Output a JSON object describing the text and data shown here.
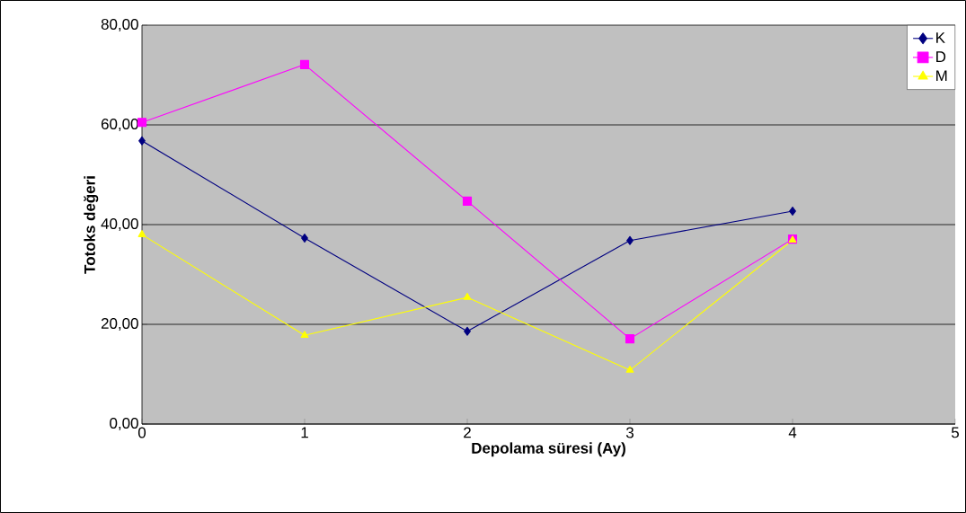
{
  "chart_data": {
    "type": "line",
    "xlabel": "Depolama süresi (Ay)",
    "ylabel": "Totoks değeri",
    "x": [
      0,
      1,
      2,
      3,
      4
    ],
    "series": [
      {
        "name": "K",
        "color": "#000080",
        "marker": "diamond",
        "values": [
          56.8,
          37.3,
          18.6,
          36.8,
          42.7
        ]
      },
      {
        "name": "D",
        "color": "#ff00ff",
        "marker": "square",
        "values": [
          60.5,
          72.1,
          44.7,
          17.1,
          37.1
        ]
      },
      {
        "name": "M",
        "color": "#ffff00",
        "marker": "triangle",
        "values": [
          38.0,
          17.8,
          25.4,
          10.8,
          36.9
        ]
      }
    ],
    "xlim": [
      0,
      5
    ],
    "xticks": [
      0,
      1,
      2,
      3,
      4,
      5
    ],
    "ylim": [
      0,
      80
    ],
    "yticks": [
      {
        "value": 0,
        "label": "0,00"
      },
      {
        "value": 20,
        "label": "20,00"
      },
      {
        "value": 40,
        "label": "40,00"
      },
      {
        "value": 60,
        "label": "60,00"
      },
      {
        "value": 80,
        "label": "80,00"
      }
    ],
    "grid": "y",
    "legend": "top right",
    "line_style": "solid"
  }
}
